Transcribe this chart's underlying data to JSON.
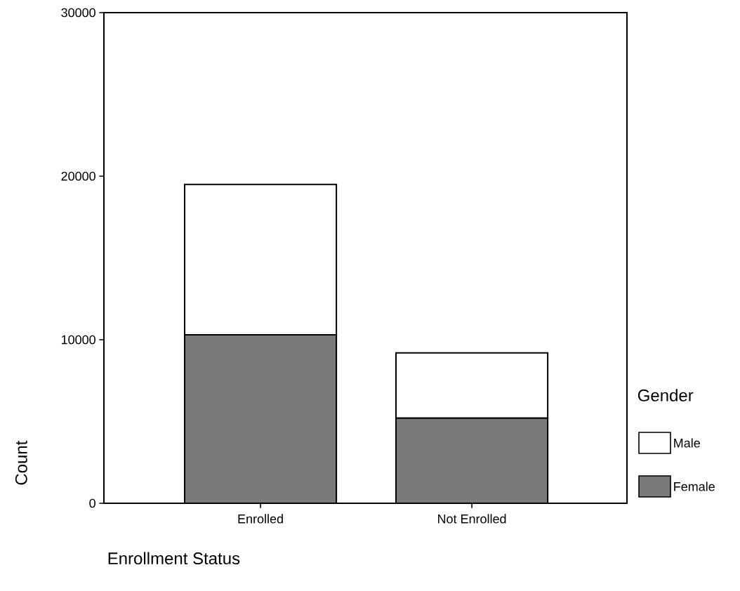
{
  "chart_data": {
    "type": "bar",
    "stacked": true,
    "xlabel": "Enrollment Status",
    "ylabel": "Count",
    "legend_title": "Gender",
    "legend": "right",
    "categories": [
      "Enrolled",
      "Not Enrolled"
    ],
    "series": [
      {
        "name": "Female",
        "color": "#7a7a7a",
        "values": [
          10300,
          5200
        ]
      },
      {
        "name": "Male",
        "color": "#ffffff",
        "values": [
          9200,
          4000
        ]
      }
    ],
    "ylim": [
      0,
      30000
    ],
    "yticks": [
      0,
      10000,
      20000,
      30000
    ],
    "grid": false
  }
}
